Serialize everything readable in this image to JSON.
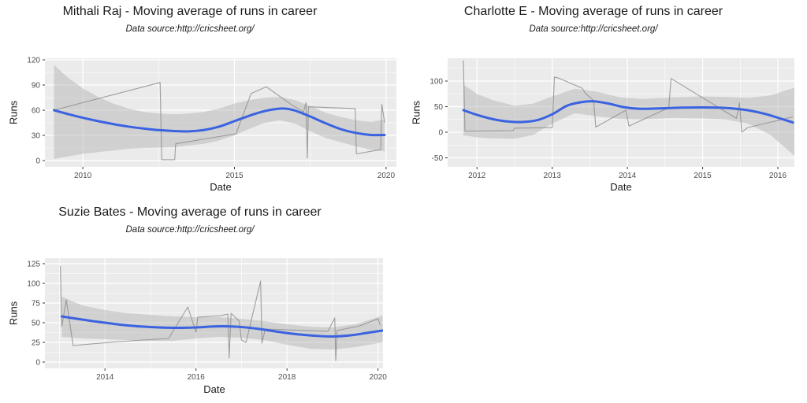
{
  "style": {
    "page_bg": "#FFFFFF",
    "panel_bg": "#EBEBEB",
    "grid": "#FFFFFF",
    "smooth_line": "#3B63E0",
    "raw_line": "#8F8F8F",
    "ribbon": "#AFAFAF",
    "ribbon_opacity": 0.45,
    "tick_mark": "#333333",
    "tick_label": "#4D4D4D",
    "text": "#1A1A1A"
  },
  "chart_data": [
    {
      "type": "line",
      "title": "Mithali Raj - Moving average of runs in career",
      "subtitle": "Data source:http://cricsheet.org/",
      "xlabel": "Date",
      "ylabel": "Runs",
      "legend": "none",
      "grid": "on",
      "x_axis": {
        "min": 2008.75,
        "max": 2020.34,
        "ticks": [
          {
            "value": 2010,
            "label": "2010"
          },
          {
            "value": 2015,
            "label": "2015"
          },
          {
            "value": 2020,
            "label": "2020"
          }
        ],
        "minor": [
          2012.5,
          2017.5
        ]
      },
      "y_axis": {
        "min": -7.5,
        "max": 121.9,
        "ticks": [
          {
            "value": 0,
            "label": "0"
          },
          {
            "value": 30,
            "label": "30"
          },
          {
            "value": 60,
            "label": "60"
          },
          {
            "value": 90,
            "label": "90"
          },
          {
            "value": 120,
            "label": "120"
          }
        ],
        "minor": [
          15,
          45,
          75,
          105
        ]
      },
      "series": {
        "smooth": {
          "name": "loess-smoothed moving average",
          "points": [
            [
              2009.05,
              60
            ],
            [
              2009.5,
              55.5
            ],
            [
              2010,
              51
            ],
            [
              2010.5,
              47
            ],
            [
              2011,
              43.5
            ],
            [
              2011.5,
              40.5
            ],
            [
              2012,
              38.2
            ],
            [
              2012.5,
              36.3
            ],
            [
              2013,
              35.2
            ],
            [
              2013.5,
              34.8
            ],
            [
              2014,
              36.5
            ],
            [
              2014.5,
              40.5
            ],
            [
              2015,
              47
            ],
            [
              2015.5,
              53.5
            ],
            [
              2016,
              59
            ],
            [
              2016.4,
              61.5
            ],
            [
              2016.7,
              61.8
            ],
            [
              2017,
              59.5
            ],
            [
              2017.5,
              52.5
            ],
            [
              2018,
              44.5
            ],
            [
              2018.5,
              37.5
            ],
            [
              2019,
              33
            ],
            [
              2019.5,
              30.5
            ],
            [
              2019.95,
              30.5
            ]
          ]
        },
        "raw": {
          "name": "moving average of runs",
          "points": [
            [
              2009.05,
              60
            ],
            [
              2012.55,
              93
            ],
            [
              2012.6,
              1
            ],
            [
              2013.03,
              1
            ],
            [
              2013.06,
              20
            ],
            [
              2015.05,
              32
            ],
            [
              2015.55,
              80
            ],
            [
              2016.05,
              88
            ],
            [
              2016.9,
              66
            ],
            [
              2017.28,
              58
            ],
            [
              2017.36,
              69
            ],
            [
              2017.4,
              3
            ],
            [
              2017.44,
              64
            ],
            [
              2018.98,
              62
            ],
            [
              2019.02,
              8
            ],
            [
              2019.82,
              13
            ],
            [
              2019.86,
              67
            ],
            [
              2019.95,
              45
            ]
          ]
        },
        "ribbon": {
          "name": "confidence band",
          "points": [
            [
              2009.05,
              114,
              2
            ],
            [
              2009.5,
              99,
              5
            ],
            [
              2010,
              86,
              8
            ],
            [
              2010.5,
              76,
              10
            ],
            [
              2011,
              68,
              12
            ],
            [
              2011.5,
              62,
              14
            ],
            [
              2012,
              58,
              15
            ],
            [
              2012.5,
              56,
              15.5
            ],
            [
              2013,
              55,
              16
            ],
            [
              2013.5,
              56,
              18
            ],
            [
              2014,
              58,
              20
            ],
            [
              2014.5,
              62,
              24
            ],
            [
              2015,
              68,
              30
            ],
            [
              2015.5,
              72,
              38
            ],
            [
              2016,
              75,
              45
            ],
            [
              2016.5,
              76,
              48
            ],
            [
              2017,
              72,
              44
            ],
            [
              2017.5,
              65,
              35
            ],
            [
              2018,
              57,
              27
            ],
            [
              2018.5,
              52,
              22
            ],
            [
              2019,
              48,
              17
            ],
            [
              2019.5,
              46,
              13
            ],
            [
              2019.95,
              49,
              11
            ]
          ]
        }
      }
    },
    {
      "type": "line",
      "title": "Charlotte E - Moving average of runs in career",
      "subtitle": "Data source:http://cricsheet.org/",
      "xlabel": "Date",
      "ylabel": "Runs",
      "legend": "none",
      "grid": "on",
      "x_axis": {
        "min": 2011.61,
        "max": 2016.22,
        "ticks": [
          {
            "value": 2012,
            "label": "2012"
          },
          {
            "value": 2013,
            "label": "2013"
          },
          {
            "value": 2014,
            "label": "2014"
          },
          {
            "value": 2015,
            "label": "2015"
          },
          {
            "value": 2016,
            "label": "2016"
          }
        ],
        "minor": [
          2012.5,
          2013.5,
          2014.5,
          2015.5
        ]
      },
      "y_axis": {
        "min": -67.7,
        "max": 144.6,
        "ticks": [
          {
            "value": -50,
            "label": "-50"
          },
          {
            "value": 0,
            "label": "0"
          },
          {
            "value": 50,
            "label": "50"
          },
          {
            "value": 100,
            "label": "100"
          }
        ],
        "minor": [
          -25,
          25,
          75,
          125
        ]
      },
      "series": {
        "smooth": {
          "name": "loess-smoothed moving average",
          "points": [
            [
              2011.82,
              43
            ],
            [
              2012,
              34
            ],
            [
              2012.2,
              26
            ],
            [
              2012.4,
              21
            ],
            [
              2012.6,
              20
            ],
            [
              2012.8,
              23.5
            ],
            [
              2013,
              35
            ],
            [
              2013.2,
              52
            ],
            [
              2013.4,
              59
            ],
            [
              2013.55,
              60.5
            ],
            [
              2013.75,
              56
            ],
            [
              2013.95,
              49
            ],
            [
              2014.15,
              46
            ],
            [
              2014.4,
              46.5
            ],
            [
              2014.7,
              48
            ],
            [
              2015,
              48.5
            ],
            [
              2015.3,
              47.5
            ],
            [
              2015.6,
              43
            ],
            [
              2015.85,
              35
            ],
            [
              2016.05,
              26
            ],
            [
              2016.2,
              19
            ]
          ]
        },
        "raw": {
          "name": "moving average of runs",
          "points": [
            [
              2011.82,
              140
            ],
            [
              2011.84,
              2
            ],
            [
              2012.48,
              3
            ],
            [
              2012.5,
              8
            ],
            [
              2013,
              9
            ],
            [
              2013.03,
              108
            ],
            [
              2013.1,
              105
            ],
            [
              2013.4,
              86
            ],
            [
              2013.44,
              76
            ],
            [
              2013.55,
              62
            ],
            [
              2013.58,
              10
            ],
            [
              2013.98,
              43
            ],
            [
              2014.02,
              12
            ],
            [
              2014.55,
              48
            ],
            [
              2014.58,
              105
            ],
            [
              2015.45,
              27
            ],
            [
              2015.49,
              58
            ],
            [
              2015.52,
              0
            ],
            [
              2015.6,
              9
            ],
            [
              2016.2,
              30
            ]
          ]
        },
        "ribbon": {
          "name": "confidence band",
          "points": [
            [
              2011.82,
              93,
              -6
            ],
            [
              2012,
              75,
              -10
            ],
            [
              2012.2,
              63,
              -12
            ],
            [
              2012.5,
              52,
              -13
            ],
            [
              2012.75,
              56,
              -5
            ],
            [
              2013,
              70,
              17
            ],
            [
              2013.3,
              85,
              37
            ],
            [
              2013.6,
              79,
              31
            ],
            [
              2013.9,
              68,
              26
            ],
            [
              2014.2,
              65,
              25
            ],
            [
              2014.6,
              68,
              28
            ],
            [
              2015,
              70,
              27
            ],
            [
              2015.3,
              69,
              25
            ],
            [
              2015.6,
              67,
              17
            ],
            [
              2015.9,
              72,
              -5
            ],
            [
              2016.22,
              87,
              -46
            ]
          ]
        }
      }
    },
    {
      "type": "line",
      "title": "Suzie Bates - Moving average of runs in career",
      "subtitle": "Data source:http://cricsheet.org/",
      "xlabel": "Date",
      "ylabel": "Runs",
      "legend": "none",
      "grid": "on",
      "x_axis": {
        "min": 2012.68,
        "max": 2020.11,
        "ticks": [
          {
            "value": 2014,
            "label": "2014"
          },
          {
            "value": 2016,
            "label": "2016"
          },
          {
            "value": 2018,
            "label": "2018"
          },
          {
            "value": 2020,
            "label": "2020"
          }
        ],
        "minor": [
          2013,
          2015,
          2017,
          2019
        ]
      },
      "y_axis": {
        "min": -8,
        "max": 132,
        "ticks": [
          {
            "value": 0,
            "label": "0"
          },
          {
            "value": 25,
            "label": "25"
          },
          {
            "value": 50,
            "label": "50"
          },
          {
            "value": 75,
            "label": "75"
          },
          {
            "value": 100,
            "label": "100"
          },
          {
            "value": 125,
            "label": "125"
          }
        ],
        "minor": [
          12.5,
          37.5,
          62.5,
          87.5,
          112.5
        ]
      },
      "series": {
        "smooth": {
          "name": "loess-smoothed moving average",
          "points": [
            [
              2013.05,
              58
            ],
            [
              2013.5,
              54
            ],
            [
              2014,
              50
            ],
            [
              2014.5,
              46.5
            ],
            [
              2015,
              44.5
            ],
            [
              2015.5,
              43.5
            ],
            [
              2016,
              44
            ],
            [
              2016.3,
              45
            ],
            [
              2016.6,
              45.5
            ],
            [
              2017,
              44.5
            ],
            [
              2017.4,
              42
            ],
            [
              2017.8,
              38.5
            ],
            [
              2018.2,
              35.5
            ],
            [
              2018.6,
              33.5
            ],
            [
              2019,
              32.5
            ],
            [
              2019.4,
              34
            ],
            [
              2019.8,
              37.5
            ],
            [
              2020.1,
              40
            ]
          ]
        },
        "raw": {
          "name": "moving average of runs",
          "points": [
            [
              2013.02,
              122
            ],
            [
              2013.05,
              45
            ],
            [
              2013.15,
              79
            ],
            [
              2013.3,
              21
            ],
            [
              2014.3,
              26
            ],
            [
              2015.4,
              30
            ],
            [
              2015.48,
              38
            ],
            [
              2015.82,
              70
            ],
            [
              2016,
              38
            ],
            [
              2016.04,
              57
            ],
            [
              2016.55,
              59
            ],
            [
              2016.7,
              61
            ],
            [
              2016.73,
              5
            ],
            [
              2016.77,
              62
            ],
            [
              2016.95,
              52
            ],
            [
              2017,
              28
            ],
            [
              2017.1,
              25
            ],
            [
              2017.42,
              103
            ],
            [
              2017.45,
              24
            ],
            [
              2017.52,
              42
            ],
            [
              2018.9,
              39
            ],
            [
              2019.05,
              56
            ],
            [
              2019.07,
              2
            ],
            [
              2019.1,
              40
            ],
            [
              2019.6,
              46
            ],
            [
              2020,
              55
            ],
            [
              2020.05,
              47
            ]
          ]
        },
        "ribbon": {
          "name": "confidence band",
          "points": [
            [
              2013.05,
              83,
              32
            ],
            [
              2013.5,
              72,
              30
            ],
            [
              2014,
              66,
              29
            ],
            [
              2014.5,
              62,
              28
            ],
            [
              2015,
              60,
              27
            ],
            [
              2015.5,
              58,
              27
            ],
            [
              2016,
              57,
              30
            ],
            [
              2016.5,
              57,
              32
            ],
            [
              2017,
              55,
              31
            ],
            [
              2017.5,
              52,
              28
            ],
            [
              2018,
              48,
              22
            ],
            [
              2018.5,
              45,
              17
            ],
            [
              2019,
              44,
              16
            ],
            [
              2019.5,
              48,
              19
            ],
            [
              2020.1,
              59,
              25
            ]
          ]
        }
      }
    }
  ]
}
